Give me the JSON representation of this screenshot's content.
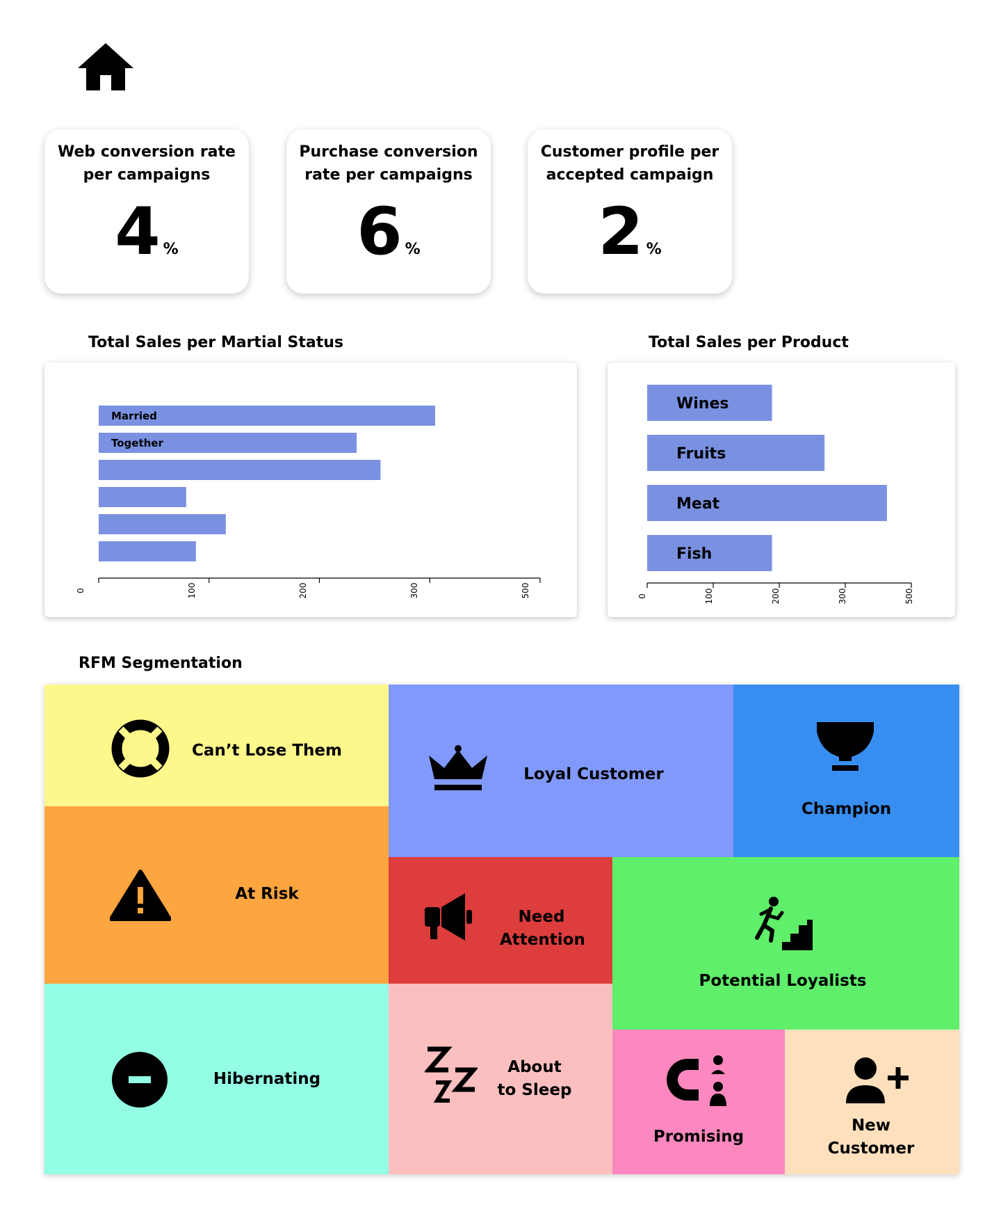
{
  "kpis": [
    {
      "title": "Web conversion rate per campaigns",
      "value": "4",
      "unit": "%"
    },
    {
      "title": "Purchase conversion rate per campaigns",
      "value": "6",
      "unit": "%"
    },
    {
      "title": "Customer profile per accepted campaign",
      "value": "2",
      "unit": "%"
    }
  ],
  "charts": {
    "marital_title": "Total Sales per Martial Status",
    "product_title": "Total Sales per Product"
  },
  "chart_data": [
    {
      "type": "bar",
      "orientation": "horizontal",
      "title": "Total Sales per Martial Status",
      "categories": [
        "Married",
        "Together",
        "",
        "",
        "",
        ""
      ],
      "values": [
        450,
        345,
        377,
        117,
        170,
        130
      ],
      "xticks": [
        "0",
        "100",
        "200",
        "300",
        "500"
      ],
      "xlim": [
        0,
        530
      ],
      "color": "#7a91e2"
    },
    {
      "type": "bar",
      "orientation": "horizontal",
      "title": "Total Sales per Product",
      "categories": [
        "Wines",
        "Fruits",
        "Meat",
        "Fish"
      ],
      "values": [
        190,
        270,
        365,
        190
      ],
      "xticks": [
        "0",
        "100",
        "200",
        "300",
        "500"
      ],
      "xlim": [
        0,
        400
      ],
      "color": "#7a91e2"
    }
  ],
  "rfm": {
    "title": "RFM Segmentation",
    "segments": {
      "cant_lose": {
        "label": "Can’t Lose Them",
        "color": "#fef78b",
        "icon": "lifebuoy-icon"
      },
      "loyal": {
        "label": "Loyal Customer",
        "color": "#8199fb",
        "icon": "crown-icon"
      },
      "champion": {
        "label": "Champion",
        "color": "#378ef0",
        "icon": "trophy-icon"
      },
      "at_risk": {
        "label": "At Risk",
        "color": "#fda53f",
        "icon": "warning-icon"
      },
      "need_attention": {
        "label_line1": "Need",
        "label_line2": "Attention",
        "color": "#dd3d3d",
        "icon": "megaphone-icon"
      },
      "potential": {
        "label": "Potential Loyalists",
        "color": "#5fef6b",
        "icon": "stairs-climber-icon"
      },
      "hibernating": {
        "label": "Hibernating",
        "color": "#93fee4",
        "icon": "minus-circle-icon"
      },
      "about_to_sleep": {
        "label_line1": "About",
        "label_line2": "to Sleep",
        "color": "#fcbfbf",
        "icon": "zzz-icon"
      },
      "promising": {
        "label": "Promising",
        "color": "#fd88bf",
        "icon": "magnet-people-icon"
      },
      "new_customer": {
        "label_line1": "New",
        "label_line2": "Customer",
        "color": "#ffe0bd",
        "icon": "add-user-icon"
      }
    }
  }
}
